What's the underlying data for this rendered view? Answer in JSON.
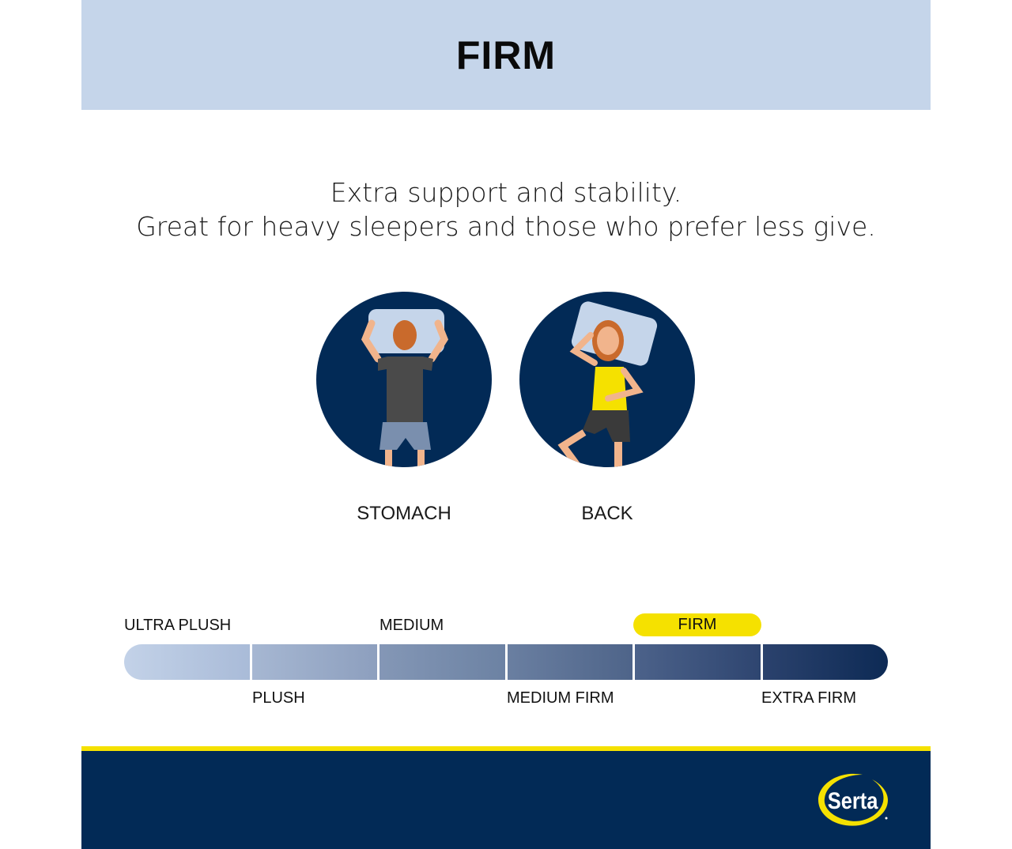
{
  "header": {
    "title": "FIRM"
  },
  "tagline": {
    "line1": "Extra support and stability.",
    "line2": "Great for heavy sleepers and those who prefer less give."
  },
  "positions": [
    {
      "label": "STOMACH",
      "icon": "stomach-sleeper-illustration"
    },
    {
      "label": "BACK",
      "icon": "back-sleeper-illustration"
    }
  ],
  "firmness_scale": {
    "levels": [
      "ULTRA PLUSH",
      "PLUSH",
      "MEDIUM",
      "MEDIUM FIRM",
      "FIRM",
      "EXTRA FIRM"
    ],
    "selected": "FIRM",
    "selected_index": 4
  },
  "brand": {
    "logo_text": "Serta"
  },
  "colors": {
    "header_bg": "#c5d5ea",
    "navy": "#022a56",
    "accent_yellow": "#f5e100",
    "scale_light": "#c3d2e8",
    "scale_dark": "#0d2a55"
  }
}
